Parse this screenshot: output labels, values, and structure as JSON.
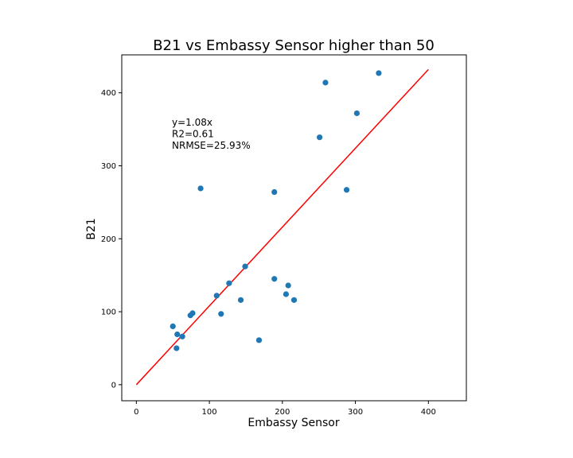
{
  "chart_data": {
    "type": "scatter",
    "title": "B21 vs Embassy Sensor higher than 50",
    "xlabel": "Embassy Sensor",
    "ylabel": "B21",
    "xlim": [
      -20,
      452
    ],
    "ylim": [
      -22,
      452
    ],
    "xticks": [
      0,
      100,
      200,
      300,
      400
    ],
    "yticks": [
      0,
      100,
      200,
      300,
      400
    ],
    "grid": false,
    "annotation_lines": [
      "y=1.08x",
      "R2=0.61",
      "NRMSE=25.93%"
    ],
    "colors": {
      "points": "#1f77b4",
      "fit_line": "#ff0000"
    },
    "fit_line": {
      "slope": 1.08,
      "x_range": [
        0,
        400
      ]
    },
    "points": [
      {
        "x": 50,
        "y": 80
      },
      {
        "x": 56,
        "y": 69
      },
      {
        "x": 55,
        "y": 50
      },
      {
        "x": 63,
        "y": 66
      },
      {
        "x": 74,
        "y": 95
      },
      {
        "x": 77,
        "y": 98
      },
      {
        "x": 88,
        "y": 269
      },
      {
        "x": 110,
        "y": 122
      },
      {
        "x": 116,
        "y": 97
      },
      {
        "x": 127,
        "y": 139
      },
      {
        "x": 143,
        "y": 116
      },
      {
        "x": 149,
        "y": 162
      },
      {
        "x": 168,
        "y": 61
      },
      {
        "x": 189,
        "y": 264
      },
      {
        "x": 189,
        "y": 145
      },
      {
        "x": 205,
        "y": 124
      },
      {
        "x": 208,
        "y": 136
      },
      {
        "x": 216,
        "y": 116
      },
      {
        "x": 251,
        "y": 339
      },
      {
        "x": 259,
        "y": 414
      },
      {
        "x": 288,
        "y": 267
      },
      {
        "x": 302,
        "y": 372
      },
      {
        "x": 332,
        "y": 427
      }
    ]
  }
}
